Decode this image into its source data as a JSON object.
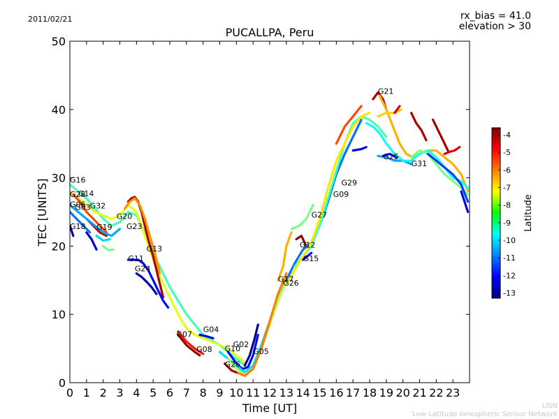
{
  "header": {
    "date": "2011/02/21",
    "bias_note": "rx_bias = 41.0",
    "elevation_note": "elevation > 30"
  },
  "footer": {
    "org_short": "LISN",
    "org_full": "Low-Latitude Ionospheric Sensor Network"
  },
  "chart_data": {
    "type": "scatter",
    "title": "PUCALLPA, Peru",
    "xlabel": "Time [UT]",
    "ylabel": "TEC [UNITS]",
    "xlim": [
      0,
      24
    ],
    "ylim": [
      0,
      50
    ],
    "xticks": [
      "0",
      "1",
      "2",
      "3",
      "4",
      "5",
      "6",
      "7",
      "8",
      "9",
      "10",
      "11",
      "12",
      "13",
      "14",
      "15",
      "16",
      "17",
      "18",
      "19",
      "20",
      "21",
      "22",
      "23"
    ],
    "yticks": [
      "0",
      "10",
      "20",
      "30",
      "40",
      "50"
    ],
    "grid": false,
    "colorbar": {
      "label": "Latitude",
      "min": -13.3,
      "max": -3.6,
      "ticks": [
        "-4",
        "-5",
        "-6",
        "-7",
        "-8",
        "-9",
        "-10",
        "-11",
        "-12",
        "-13"
      ],
      "colormap": "jet"
    },
    "satellite_labels": [
      {
        "text": "G16",
        "x": 0.0,
        "y": 29.3
      },
      {
        "text": "G28",
        "x": 0.0,
        "y": 27.2
      },
      {
        "text": "G14",
        "x": 0.5,
        "y": 27.3
      },
      {
        "text": "G06",
        "x": 0.0,
        "y": 25.7
      },
      {
        "text": "G03",
        "x": 0.3,
        "y": 25.3
      },
      {
        "text": "G32",
        "x": 1.2,
        "y": 25.5
      },
      {
        "text": "G18",
        "x": 0.0,
        "y": 22.5
      },
      {
        "text": "G19",
        "x": 1.6,
        "y": 22.4
      },
      {
        "text": "G20",
        "x": 2.8,
        "y": 24.0
      },
      {
        "text": "G23",
        "x": 3.4,
        "y": 22.5
      },
      {
        "text": "G13",
        "x": 4.6,
        "y": 19.2
      },
      {
        "text": "G11",
        "x": 3.5,
        "y": 17.8
      },
      {
        "text": "G24",
        "x": 3.9,
        "y": 16.3
      },
      {
        "text": "G07",
        "x": 6.4,
        "y": 6.7
      },
      {
        "text": "G04",
        "x": 8.0,
        "y": 7.4
      },
      {
        "text": "G08",
        "x": 7.6,
        "y": 4.5
      },
      {
        "text": "G02",
        "x": 9.8,
        "y": 5.2
      },
      {
        "text": "G10",
        "x": 9.3,
        "y": 4.6
      },
      {
        "text": "G05",
        "x": 11.0,
        "y": 4.2
      },
      {
        "text": "G26",
        "x": 9.3,
        "y": 2.3
      },
      {
        "text": "G17",
        "x": 12.5,
        "y": 14.8
      },
      {
        "text": "G26",
        "x": 12.8,
        "y": 14.2
      },
      {
        "text": "G12",
        "x": 13.8,
        "y": 19.8
      },
      {
        "text": "G15",
        "x": 14.0,
        "y": 17.8
      },
      {
        "text": "G27",
        "x": 14.5,
        "y": 24.2
      },
      {
        "text": "G09",
        "x": 15.8,
        "y": 27.2
      },
      {
        "text": "G29",
        "x": 16.3,
        "y": 28.9
      },
      {
        "text": "G21",
        "x": 18.5,
        "y": 42.3
      },
      {
        "text": "G25",
        "x": 18.8,
        "y": 32.7
      },
      {
        "text": "G31",
        "x": 20.5,
        "y": 31.7
      }
    ],
    "series": [
      {
        "lat": -9.0,
        "x": [
          0.0,
          0.5,
          1.0,
          1.5,
          2.0,
          2.5,
          3.0,
          3.5,
          4.0,
          4.5,
          5.0,
          5.5,
          6.0,
          6.5,
          7.0,
          7.5,
          8.0,
          8.5,
          9.0,
          9.5,
          10.0,
          10.5
        ],
        "y": [
          29.0,
          28.0,
          27.0,
          25.5,
          24.0,
          23.0,
          23.5,
          25.0,
          24.5,
          22.0,
          19.0,
          16.5,
          14.0,
          12.0,
          10.0,
          8.5,
          7.0,
          6.2,
          5.5,
          4.5,
          3.5,
          2.5
        ]
      },
      {
        "lat": -7.5,
        "x": [
          0.0,
          0.5,
          1.0,
          1.5,
          2.0,
          2.5,
          3.0,
          3.5,
          4.0,
          4.5,
          5.0,
          5.5,
          6.0,
          6.5,
          7.0,
          7.5,
          8.0,
          8.5,
          9.0,
          9.5,
          10.0,
          10.5
        ],
        "y": [
          28.0,
          27.0,
          26.0,
          25.0,
          24.5,
          24.0,
          24.5,
          26.0,
          25.0,
          21.5,
          18.0,
          15.0,
          12.5,
          10.0,
          8.0,
          7.0,
          6.5,
          6.0,
          5.5,
          5.0,
          4.0,
          3.0
        ]
      },
      {
        "lat": -5.5,
        "x": [
          0.2,
          0.6,
          1.0,
          1.4,
          1.8,
          2.2
        ],
        "y": [
          27.5,
          26.5,
          25.0,
          24.0,
          23.0,
          22.0
        ]
      },
      {
        "lat": -4.2,
        "x": [
          1.0,
          1.4,
          1.8,
          2.2
        ],
        "y": [
          24.0,
          23.0,
          22.0,
          21.5
        ]
      },
      {
        "lat": -10.5,
        "x": [
          0.0,
          0.5,
          1.0,
          1.5,
          2.0,
          2.5,
          3.0
        ],
        "y": [
          26.0,
          25.0,
          24.0,
          23.0,
          22.0,
          21.5,
          22.5
        ]
      },
      {
        "lat": -11.0,
        "x": [
          0.0,
          0.4,
          0.8,
          1.2
        ],
        "y": [
          25.0,
          24.0,
          23.0,
          22.0
        ]
      },
      {
        "lat": -12.5,
        "x": [
          1.0,
          1.3,
          1.6
        ],
        "y": [
          22.0,
          21.0,
          19.5
        ]
      },
      {
        "lat": -12.8,
        "x": [
          0.0,
          0.2
        ],
        "y": [
          23.0,
          21.5
        ]
      },
      {
        "lat": -8.5,
        "x": [
          2.0,
          2.3,
          2.6
        ],
        "y": [
          20.0,
          19.4,
          19.5
        ]
      },
      {
        "lat": -10.0,
        "x": [
          1.6,
          2.0,
          2.4
        ],
        "y": [
          21.5,
          20.8,
          21.0
        ]
      },
      {
        "lat": -4.0,
        "x": [
          3.5,
          3.7,
          3.9,
          4.1,
          4.3,
          4.5,
          4.7,
          5.0,
          5.3,
          5.6
        ],
        "y": [
          26.5,
          27.0,
          27.2,
          26.5,
          25.0,
          23.0,
          21.0,
          18.5,
          15.5,
          12.5
        ]
      },
      {
        "lat": -6.2,
        "x": [
          3.3,
          3.6,
          3.9,
          4.2,
          4.5,
          4.8,
          5.1,
          5.4
        ],
        "y": [
          25.5,
          26.5,
          27.0,
          26.0,
          24.0,
          21.5,
          19.0,
          16.0
        ]
      },
      {
        "lat": -12.0,
        "x": [
          3.5,
          3.8,
          4.1,
          4.4,
          4.7,
          5.0,
          5.3,
          5.6,
          5.9
        ],
        "y": [
          18.0,
          18.0,
          18.0,
          17.5,
          16.5,
          15.0,
          13.5,
          12.0,
          11.0
        ]
      },
      {
        "lat": -12.8,
        "x": [
          4.0,
          4.3,
          4.6,
          4.9,
          5.2
        ],
        "y": [
          16.0,
          15.5,
          14.8,
          14.0,
          13.0
        ]
      },
      {
        "lat": -12.0,
        "x": [
          9.5,
          9.8,
          10.1,
          10.4,
          10.7,
          11.0,
          11.3
        ],
        "y": [
          4.5,
          3.5,
          2.5,
          2.0,
          2.3,
          4.0,
          7.0
        ]
      },
      {
        "lat": -13.0,
        "x": [
          10.5,
          10.8,
          11.1,
          11.3
        ],
        "y": [
          2.5,
          4.0,
          6.5,
          8.5
        ]
      },
      {
        "lat": -10.0,
        "x": [
          9.0,
          9.5,
          10.0,
          10.5,
          11.0,
          11.5,
          12.0,
          12.5,
          13.0
        ],
        "y": [
          4.5,
          3.5,
          2.5,
          1.5,
          2.5,
          5.5,
          9.0,
          12.5,
          15.0
        ]
      },
      {
        "lat": -8.0,
        "x": [
          9.5,
          10.0,
          10.5,
          11.0,
          11.5,
          12.0,
          12.5,
          13.0
        ],
        "y": [
          3.5,
          2.0,
          1.2,
          2.0,
          5.0,
          8.5,
          12.0,
          15.0
        ]
      },
      {
        "lat": -6.0,
        "x": [
          10.0,
          10.5,
          11.0,
          11.5,
          12.0,
          12.5,
          13.0
        ],
        "y": [
          1.5,
          1.0,
          2.0,
          5.0,
          9.0,
          13.0,
          16.0
        ]
      },
      {
        "lat": -4.0,
        "x": [
          9.3,
          9.7,
          10.0
        ],
        "y": [
          2.8,
          1.8,
          1.5
        ]
      },
      {
        "lat": -3.8,
        "x": [
          6.5,
          7.0,
          7.5,
          7.8
        ],
        "y": [
          7.0,
          5.5,
          4.5,
          4.0
        ]
      },
      {
        "lat": -5.0,
        "x": [
          6.5,
          7.0,
          7.5,
          8.0
        ],
        "y": [
          7.5,
          6.0,
          5.0,
          4.2
        ]
      },
      {
        "lat": -12.5,
        "x": [
          7.8,
          8.2,
          8.6
        ],
        "y": [
          7.0,
          6.8,
          6.5
        ]
      },
      {
        "lat": -6.5,
        "x": [
          12.5,
          12.8,
          13.0,
          13.3
        ],
        "y": [
          15.0,
          17.0,
          20.0,
          22.0
        ]
      },
      {
        "lat": -8.5,
        "x": [
          13.3,
          13.8,
          14.2,
          14.6
        ],
        "y": [
          22.5,
          23.0,
          24.0,
          26.0
        ]
      },
      {
        "lat": -3.8,
        "x": [
          13.6,
          13.9,
          14.2
        ],
        "y": [
          21.0,
          21.5,
          20.0
        ]
      },
      {
        "lat": -11.0,
        "x": [
          13.0,
          13.5,
          14.0,
          14.5,
          15.0,
          15.5,
          16.0,
          16.5,
          17.0,
          17.5
        ],
        "y": [
          15.0,
          17.5,
          19.5,
          20.5,
          23.0,
          26.5,
          30.5,
          33.5,
          36.0,
          38.5
        ]
      },
      {
        "lat": -9.0,
        "x": [
          13.5,
          14.0,
          14.5,
          15.0,
          15.5,
          16.0,
          16.5,
          17.0,
          17.5,
          18.0,
          18.5,
          19.0
        ],
        "y": [
          17.0,
          18.5,
          20.0,
          23.0,
          27.0,
          31.0,
          35.0,
          38.0,
          39.0,
          38.5,
          37.5,
          36.0
        ]
      },
      {
        "lat": -7.0,
        "x": [
          13.0,
          13.5,
          14.0,
          14.5,
          15.0,
          15.5,
          16.0,
          16.5,
          17.0,
          17.5,
          18.0
        ],
        "y": [
          14.5,
          16.5,
          18.5,
          20.5,
          24.0,
          28.5,
          32.5,
          35.0,
          37.5,
          39.0,
          39.5
        ]
      },
      {
        "lat": -12.0,
        "x": [
          14.0,
          14.5
        ],
        "y": [
          18.0,
          19.0
        ]
      },
      {
        "lat": -5.5,
        "x": [
          16.0,
          16.5,
          17.0,
          17.5
        ],
        "y": [
          35.0,
          37.5,
          39.0,
          40.5
        ]
      },
      {
        "lat": -4.0,
        "x": [
          18.2,
          18.5,
          18.8,
          19.0
        ],
        "y": [
          41.5,
          42.5,
          41.5,
          40.0
        ]
      },
      {
        "lat": -6.5,
        "x": [
          18.6,
          19.0,
          19.4,
          19.8,
          20.2,
          20.6,
          21.0,
          21.5,
          22.0,
          22.5,
          23.0,
          23.5,
          23.9
        ],
        "y": [
          42.0,
          40.0,
          37.5,
          35.0,
          33.5,
          33.0,
          33.5,
          34.0,
          34.0,
          33.0,
          32.0,
          30.5,
          28.0
        ]
      },
      {
        "lat": -6.8,
        "x": [
          18.5,
          19.0,
          19.5,
          19.9
        ],
        "y": [
          39.0,
          39.5,
          39.5,
          40.0
        ]
      },
      {
        "lat": -4.5,
        "x": [
          19.5,
          19.8
        ],
        "y": [
          39.5,
          40.5
        ]
      },
      {
        "lat": -12.5,
        "x": [
          17.0,
          17.5,
          17.8
        ],
        "y": [
          34.0,
          34.2,
          34.5
        ]
      },
      {
        "lat": -10.5,
        "x": [
          18.5,
          19.0,
          19.5,
          20.0,
          20.5
        ],
        "y": [
          33.2,
          33.0,
          32.5,
          32.5,
          32.0
        ]
      },
      {
        "lat": -12.0,
        "x": [
          18.8,
          19.2,
          19.6
        ],
        "y": [
          33.2,
          33.5,
          33.0
        ]
      },
      {
        "lat": -9.5,
        "x": [
          17.8,
          18.2,
          18.6,
          19.0,
          19.5,
          20.0,
          20.5,
          21.0,
          21.5,
          22.0,
          22.5,
          23.0,
          23.5,
          23.9
        ],
        "y": [
          38.0,
          37.5,
          36.5,
          35.0,
          33.5,
          32.5,
          32.5,
          33.5,
          34.0,
          33.0,
          31.5,
          30.0,
          29.5,
          28.5
        ]
      },
      {
        "lat": -8.5,
        "x": [
          20.5,
          21.0,
          21.5,
          22.0,
          22.5,
          23.0,
          23.5,
          23.9
        ],
        "y": [
          33.0,
          34.0,
          33.5,
          32.0,
          30.5,
          29.5,
          28.5,
          27.5
        ]
      },
      {
        "lat": -11.5,
        "x": [
          21.5,
          22.0,
          22.5,
          23.0,
          23.5,
          23.9
        ],
        "y": [
          33.5,
          32.5,
          31.5,
          30.5,
          29.0,
          26.5
        ]
      },
      {
        "lat": -4.0,
        "x": [
          20.5,
          20.8,
          21.1,
          21.4
        ],
        "y": [
          39.5,
          38.0,
          37.0,
          35.5
        ]
      },
      {
        "lat": -3.9,
        "x": [
          21.8,
          22.1,
          22.4,
          22.7
        ],
        "y": [
          38.5,
          37.0,
          35.5,
          34.0
        ]
      },
      {
        "lat": -4.5,
        "x": [
          22.5,
          22.8,
          23.1,
          23.4
        ],
        "y": [
          33.5,
          33.8,
          34.0,
          34.5
        ]
      },
      {
        "lat": -12.5,
        "x": [
          23.5,
          23.9
        ],
        "y": [
          28.0,
          25.0
        ]
      }
    ]
  }
}
